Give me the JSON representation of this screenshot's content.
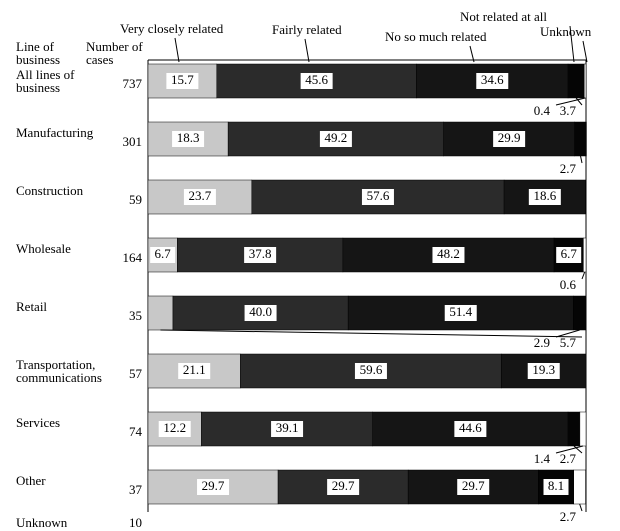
{
  "chart_data": {
    "type": "stacked-bar-horizontal",
    "row_header": "Line of business",
    "count_header": "Number of cases",
    "categories": [
      "All lines of business",
      "Manufacturing",
      "Construction",
      "Wholesale",
      "Retail",
      "Transportation, communications",
      "Services",
      "Other",
      "Unknown"
    ],
    "cases": [
      737,
      301,
      59,
      164,
      35,
      57,
      74,
      37,
      10
    ],
    "xlim": [
      0,
      100
    ],
    "series": [
      {
        "name": "Very closely related",
        "color": "#c8c8c8",
        "values": [
          15.7,
          18.3,
          23.7,
          6.7,
          5.7,
          21.1,
          12.2,
          29.7,
          null
        ],
        "value_labels": [
          "15.7",
          "18.3",
          "23.7",
          "6.7",
          "5.7",
          "21.1",
          "12.2",
          "29.7",
          null
        ]
      },
      {
        "name": "Fairly related",
        "color": "#2b2b2b",
        "values": [
          45.6,
          49.2,
          57.6,
          37.8,
          40.0,
          59.6,
          39.1,
          29.7,
          null
        ],
        "value_labels": [
          "45.6",
          "49.2",
          "57.6",
          "37.8",
          "40.0",
          "59.6",
          "39.1",
          "29.7",
          null
        ]
      },
      {
        "name": "No so much related",
        "color": "#151515",
        "values": [
          34.6,
          29.9,
          18.6,
          48.2,
          51.4,
          19.3,
          44.6,
          29.7,
          null
        ],
        "value_labels": [
          "34.6",
          "29.9",
          "18.6",
          "48.2",
          "51.4",
          "19.3",
          "44.6",
          "29.7",
          null
        ]
      },
      {
        "name": "Not related at all",
        "color": "#050505",
        "values": [
          3.7,
          2.7,
          null,
          6.7,
          2.9,
          null,
          2.7,
          8.1,
          null
        ],
        "value_labels": [
          "3.7",
          "2.7",
          null,
          "6.7",
          "2.9",
          null,
          "2.7",
          "8.1",
          null
        ]
      },
      {
        "name": "Unknown",
        "color": "#ffffff",
        "values": [
          0.4,
          null,
          null,
          0.6,
          null,
          null,
          1.4,
          2.7,
          null
        ],
        "value_labels": [
          "0.4",
          null,
          null,
          "0.6",
          null,
          null,
          "1.4",
          "2.7",
          null
        ]
      }
    ]
  }
}
